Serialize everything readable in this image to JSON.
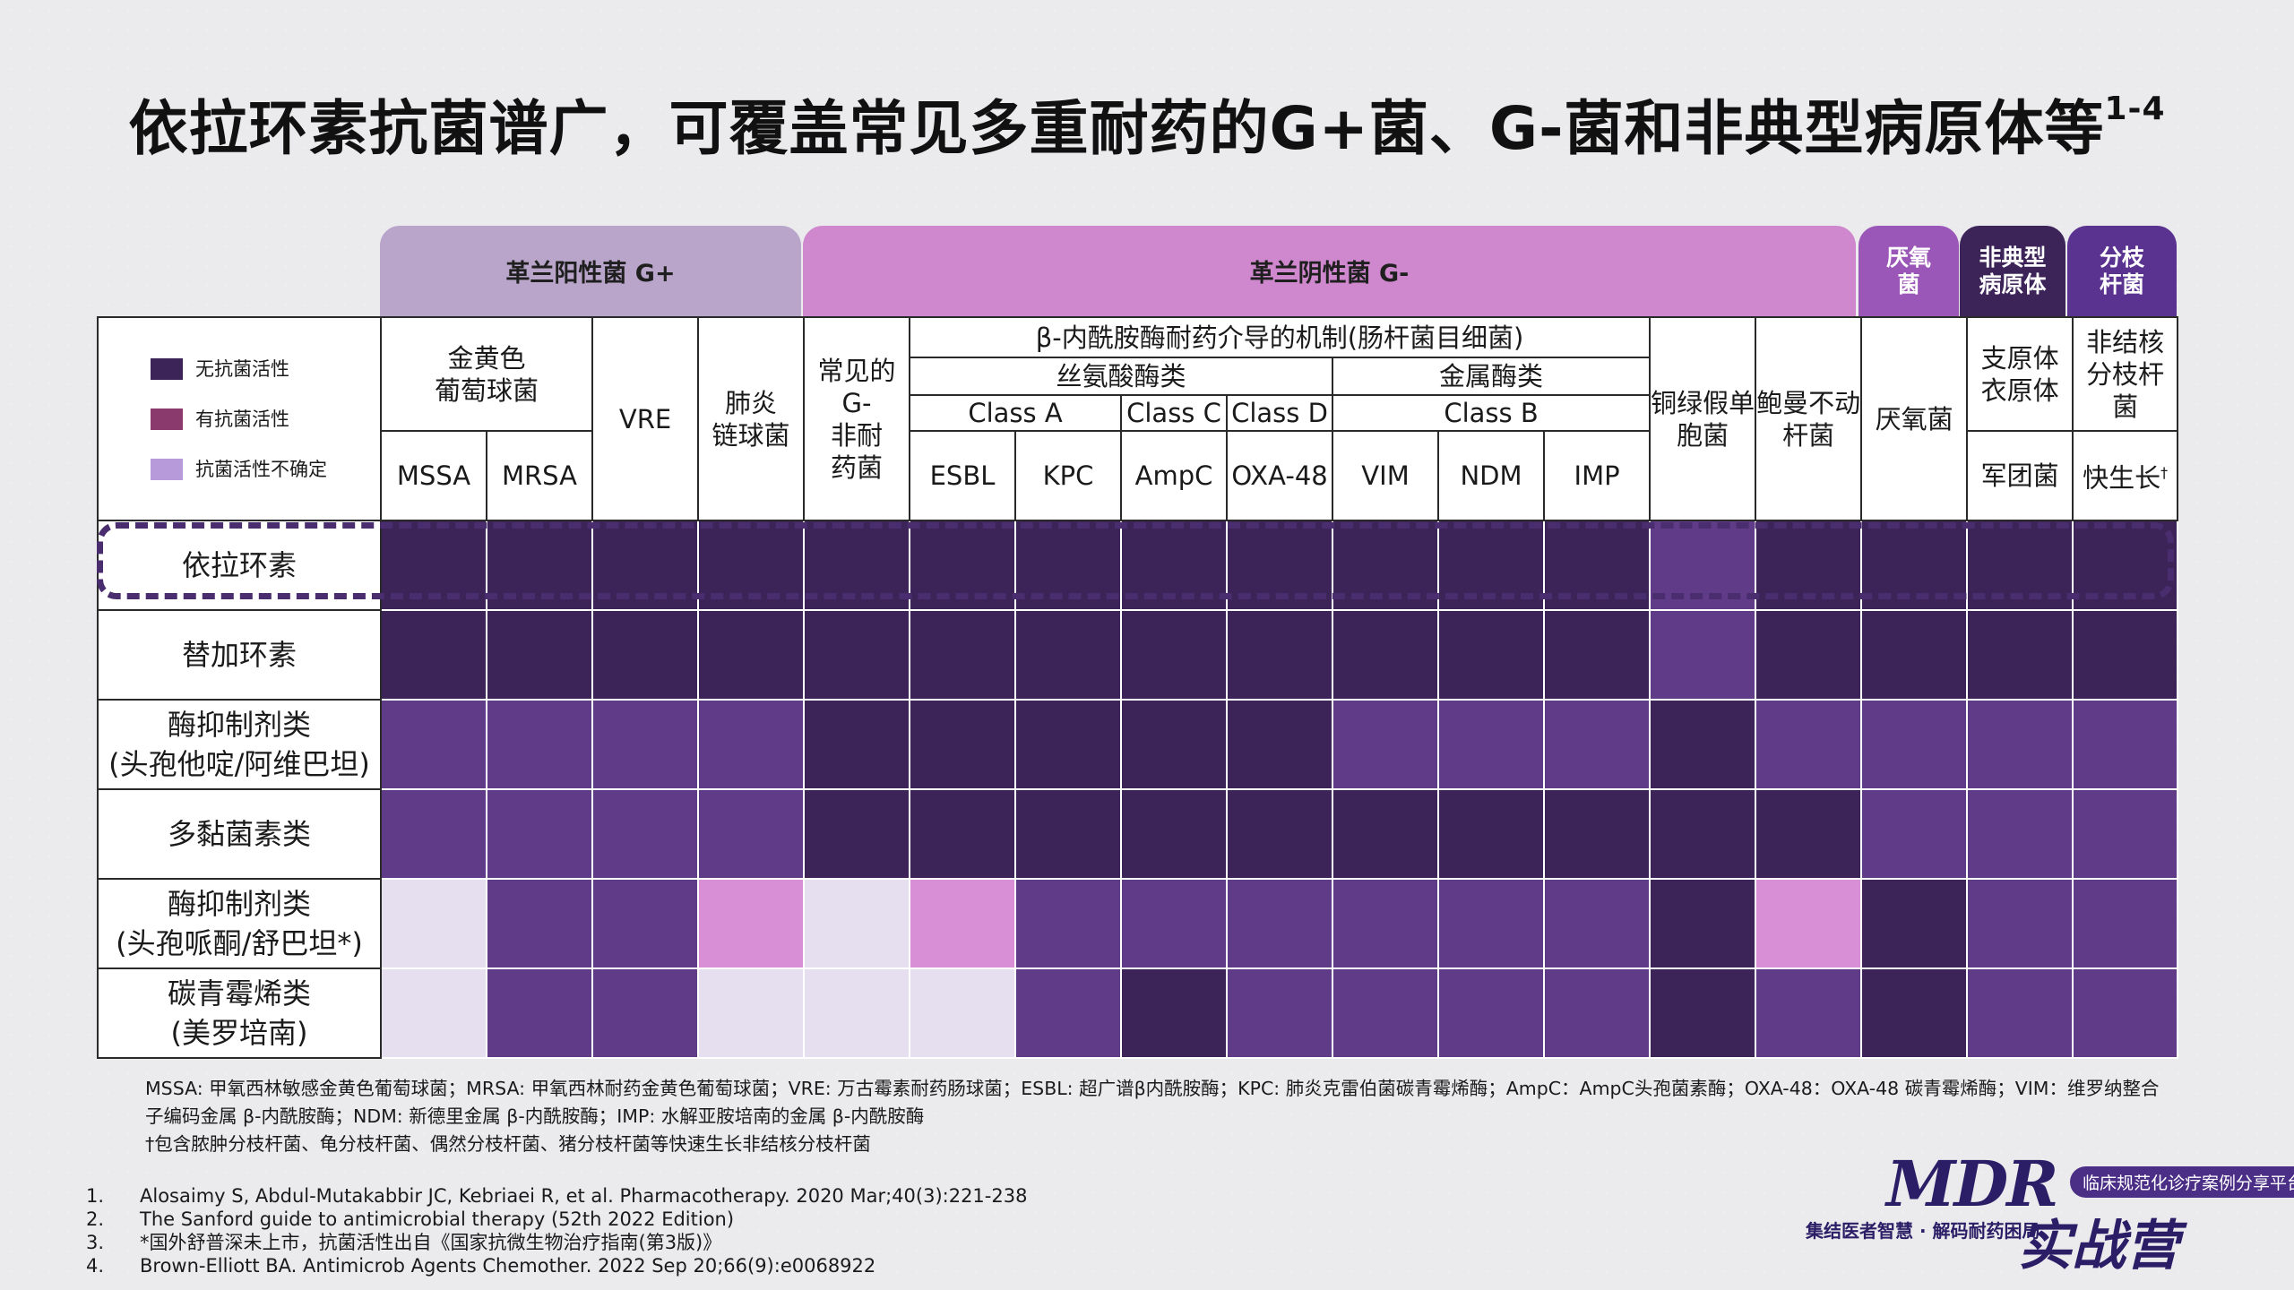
{
  "title": "依拉环素抗菌谱广，可覆盖常见多重耐药的G+菌、G-菌和非典型病原体等",
  "title_sup": "1-4",
  "groups": {
    "gpos": "革兰阳性菌 G+",
    "gneg": "革兰阴性菌 G-",
    "anaer_1": "厌氧",
    "anaer_2": "菌",
    "atyp_1": "非典型",
    "atyp_2": "病原体",
    "myco_1": "分枝",
    "myco_2": "杆菌"
  },
  "legend": [
    {
      "label": "无抗菌活性",
      "color": "#3c2459"
    },
    {
      "label": "有抗菌活性",
      "color": "#8b3a6e"
    },
    {
      "label": "抗菌活性不确定",
      "color": "#b79ad9"
    }
  ],
  "headers": {
    "staph_1": "金黄色",
    "staph_2": "葡萄球菌",
    "vre": "VRE",
    "pneumo_1": "肺炎",
    "pneumo_2": "链球菌",
    "common_1": "常见的",
    "common_2": "G-",
    "common_3": "非耐",
    "common_4": "药菌",
    "beta": "β-内酰胺酶耐药介导的机制(肠杆菌目细菌)",
    "serine": "丝氨酸酶类",
    "metallo": "金属酶类",
    "class_a": "Class A",
    "class_c": "Class C",
    "class_d": "Class D",
    "class_b": "Class B",
    "pseudo_1": "铜绿假单",
    "pseudo_2": "胞菌",
    "acin_1": "鲍曼不动",
    "acin_2": "杆菌",
    "anaer": "厌氧菌",
    "myco_1": "支原体",
    "myco_2": "衣原体",
    "legion": "军团菌",
    "ntm_1": "非结核",
    "ntm_2": "分枝杆菌",
    "mssa": "MSSA",
    "mrsa": "MRSA",
    "esbl": "ESBL",
    "kpc": "KPC",
    "ampc": "AmpC",
    "oxa": "OXA-48",
    "vim": "VIM",
    "ndm": "NDM",
    "imp": "IMP",
    "fast": "快生长",
    "fast_sup": "†"
  },
  "rows": [
    {
      "label_1": "依拉环素",
      "label_2": "",
      "cells": [
        "dark",
        "dark",
        "dark",
        "dark",
        "dark",
        "dark",
        "dark",
        "dark",
        "dark",
        "dark",
        "dark",
        "dark",
        "purple",
        "dark",
        "dark",
        "dark",
        "dark"
      ]
    },
    {
      "label_1": "替加环素",
      "label_2": "",
      "cells": [
        "dark",
        "dark",
        "dark",
        "dark",
        "dark",
        "dark",
        "dark",
        "dark",
        "dark",
        "dark",
        "dark",
        "dark",
        "purple",
        "dark",
        "dark",
        "dark",
        "dark"
      ]
    },
    {
      "label_1": "酶抑制剂类",
      "label_2": "(头孢他啶/阿维巴坦)",
      "cells": [
        "purple",
        "purple",
        "purple",
        "purple",
        "dark",
        "dark",
        "dark",
        "dark",
        "dark",
        "purple",
        "purple",
        "purple",
        "dark",
        "purple",
        "purple",
        "purple",
        "purple"
      ]
    },
    {
      "label_1": "多黏菌素类",
      "label_2": "",
      "cells": [
        "purple",
        "purple",
        "purple",
        "purple",
        "dark",
        "dark",
        "dark",
        "dark",
        "dark",
        "dark",
        "dark",
        "dark",
        "dark",
        "dark",
        "purple",
        "purple",
        "purple"
      ]
    },
    {
      "label_1": "酶抑制剂类",
      "label_2": "(头孢哌酮/舒巴坦*)",
      "cells": [
        "pale",
        "purple",
        "purple",
        "pink",
        "pale",
        "pink",
        "purple",
        "purple",
        "purple",
        "purple",
        "purple",
        "purple",
        "dark",
        "pink",
        "dark",
        "purple",
        "purple"
      ]
    },
    {
      "label_1": "碳青霉烯类",
      "label_2": "(美罗培南)",
      "cells": [
        "pale",
        "purple",
        "purple",
        "pale",
        "pale",
        "pale",
        "purple",
        "dark",
        "purple",
        "purple",
        "purple",
        "purple",
        "dark",
        "purple",
        "dark",
        "purple",
        "purple"
      ]
    }
  ],
  "notes": {
    "line1": "MSSA: 甲氧西林敏感金黄色葡萄球菌；MRSA: 甲氧西林耐药金黄色葡萄球菌；VRE: 万古霉素耐药肠球菌；ESBL: 超广谱β内酰胺酶；KPC: 肺炎克雷伯菌碳青霉烯酶；AmpC：AmpC头孢菌素酶；OXA-48：OXA-48 碳青霉烯酶；VIM：维罗纳整合子编码金属 β-内酰胺酶；NDM: 新德里金属 β-内酰胺酶；IMP: 水解亚胺培南的金属 β-内酰胺酶",
    "line2": "†包含脓肿分枝杆菌、龟分枝杆菌、偶然分枝杆菌、猪分枝杆菌等快速生长非结核分枝杆菌"
  },
  "refs": [
    {
      "num": "1.",
      "text": "Alosaimy S, Abdul-Mutakabbir JC, Kebriaei R, et al. Pharmacotherapy. 2020 Mar;40(3):221-238"
    },
    {
      "num": "2.",
      "text": "The Sanford guide to antimicrobial therapy (52th 2022 Edition)"
    },
    {
      "num": "3.",
      "text": "*国外舒普深未上市，抗菌活性出自《国家抗微生物治疗指南(第3版)》"
    },
    {
      "num": "4.",
      "text": "Brown-Elliott BA. Antimicrob Agents Chemother. 2022 Sep 20;66(9):e0068922"
    }
  ],
  "logo": {
    "mdr": "MDR",
    "tag": "临床规范化诊疗案例分享平台",
    "sub": "集结医者智慧 · 解码耐药困局",
    "big": "实战营"
  },
  "colors": {
    "dark": "#3c2459",
    "purple": "#5f3b88",
    "pink": "#d98fd6",
    "pale": "#e5dff0"
  }
}
